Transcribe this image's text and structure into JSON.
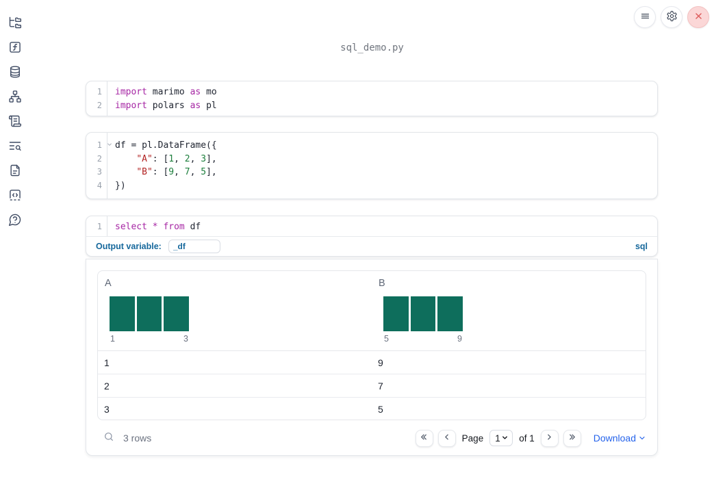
{
  "window": {
    "title": "sql_demo.py"
  },
  "topbar": {
    "menu_button": "menu",
    "settings_button": "settings",
    "close_button": "close app"
  },
  "sidebar": {
    "items": [
      {
        "name": "file-explorer",
        "icon": "folder-tree"
      },
      {
        "name": "variables",
        "icon": "function-square"
      },
      {
        "name": "data-sources",
        "icon": "database"
      },
      {
        "name": "dependency-graph",
        "icon": "network"
      },
      {
        "name": "scratchpad",
        "icon": "scroll-text"
      },
      {
        "name": "logs",
        "icon": "text-search"
      },
      {
        "name": "documentation",
        "icon": "file-text"
      },
      {
        "name": "snippets",
        "icon": "code-square"
      },
      {
        "name": "help",
        "icon": "message-question"
      }
    ]
  },
  "cells": [
    {
      "name": "imports-cell",
      "lines": [
        {
          "n": "1",
          "tokens": [
            [
              "kw",
              "import"
            ],
            [
              "pl",
              " marimo "
            ],
            [
              "kw",
              "as"
            ],
            [
              "pl",
              " mo"
            ]
          ]
        },
        {
          "n": "2",
          "tokens": [
            [
              "kw",
              "import"
            ],
            [
              "pl",
              " polars "
            ],
            [
              "kw",
              "as"
            ],
            [
              "pl",
              " pl"
            ]
          ]
        }
      ]
    },
    {
      "name": "dataframe-cell",
      "lines": [
        {
          "n": "1",
          "fold": true,
          "tokens": [
            [
              "pl",
              "df = pl.DataFrame({"
            ]
          ]
        },
        {
          "n": "2",
          "tokens": [
            [
              "pl",
              "    "
            ],
            [
              "str",
              "\"A\""
            ],
            [
              "pl",
              ": ["
            ],
            [
              "num",
              "1"
            ],
            [
              "pl",
              ", "
            ],
            [
              "num",
              "2"
            ],
            [
              "pl",
              ", "
            ],
            [
              "num",
              "3"
            ],
            [
              "pl",
              "],"
            ]
          ]
        },
        {
          "n": "3",
          "tokens": [
            [
              "pl",
              "    "
            ],
            [
              "str",
              "\"B\""
            ],
            [
              "pl",
              ": ["
            ],
            [
              "num",
              "9"
            ],
            [
              "pl",
              ", "
            ],
            [
              "num",
              "7"
            ],
            [
              "pl",
              ", "
            ],
            [
              "num",
              "5"
            ],
            [
              "pl",
              "],"
            ]
          ]
        },
        {
          "n": "4",
          "tokens": [
            [
              "pl",
              "})"
            ]
          ]
        }
      ]
    }
  ],
  "sql_cell": {
    "lines": [
      {
        "n": "1",
        "tokens": [
          [
            "kw",
            "select"
          ],
          [
            "pl",
            " "
          ],
          [
            "kw",
            "*"
          ],
          [
            "pl",
            " "
          ],
          [
            "kw",
            "from"
          ],
          [
            "pl",
            " df"
          ]
        ]
      }
    ],
    "output_variable_label": "Output variable:",
    "output_variable_value": "_df",
    "language_badge": "sql"
  },
  "table": {
    "columns": [
      {
        "label": "A",
        "histogram": {
          "values": [
            1,
            1,
            1
          ],
          "min_label": "1",
          "max_label": "3"
        }
      },
      {
        "label": "B",
        "histogram": {
          "values": [
            1,
            1,
            1
          ],
          "min_label": "5",
          "max_label": "9"
        }
      }
    ],
    "rows": [
      [
        "1",
        "9"
      ],
      [
        "2",
        "7"
      ],
      [
        "3",
        "5"
      ]
    ],
    "footer": {
      "row_count": "3 rows",
      "page_label": "Page",
      "page_value": "1",
      "of_label": "of 1",
      "download_label": "Download"
    }
  },
  "colors": {
    "accent": "#16689c",
    "link": "#2563eb",
    "bar": "#0e6e5c",
    "kw": "#a626a4",
    "str": "#b22222",
    "num": "#1c7e3c",
    "icon": "#3f4b63",
    "closeRed": "#dd5b5b",
    "closeBg": "#fbd7d7"
  }
}
